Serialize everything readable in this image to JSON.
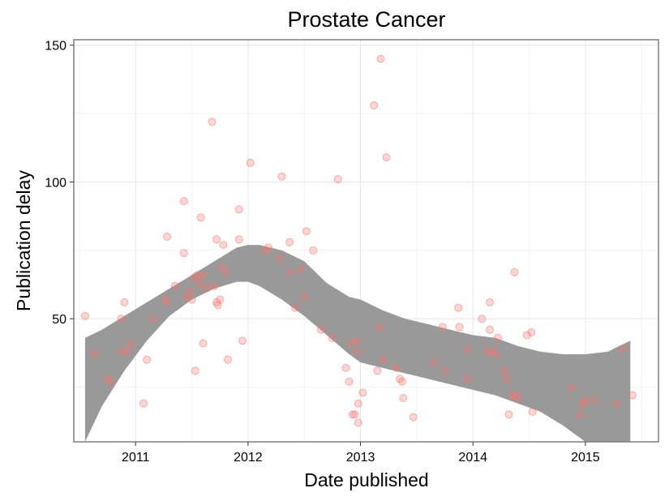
{
  "chart_data": {
    "type": "scatter",
    "title": "Prostate Cancer",
    "xlabel": "Date published",
    "ylabel": "Publication delay",
    "x_ticks": [
      "2011",
      "2012",
      "2013",
      "2014",
      "2015"
    ],
    "y_ticks": [
      "50",
      "100",
      "150"
    ],
    "xlim": [
      2010.45,
      2015.65
    ],
    "ylim": [
      5,
      152
    ],
    "grid": true,
    "point_color": "#F8766D",
    "smooth_fill_color": "#999999",
    "points": [
      [
        2010.55,
        51
      ],
      [
        2010.63,
        37
      ],
      [
        2010.75,
        28
      ],
      [
        2010.78,
        27
      ],
      [
        2010.87,
        50
      ],
      [
        2010.88,
        38
      ],
      [
        2010.9,
        56
      ],
      [
        2010.92,
        38
      ],
      [
        2010.95,
        41
      ],
      [
        2011.07,
        19
      ],
      [
        2011.1,
        35
      ],
      [
        2011.15,
        50
      ],
      [
        2011.27,
        57
      ],
      [
        2011.28,
        56
      ],
      [
        2011.28,
        80
      ],
      [
        2011.35,
        62
      ],
      [
        2011.43,
        93
      ],
      [
        2011.43,
        74
      ],
      [
        2011.45,
        58
      ],
      [
        2011.48,
        60
      ],
      [
        2011.5,
        57
      ],
      [
        2011.52,
        65
      ],
      [
        2011.53,
        31
      ],
      [
        2011.55,
        66
      ],
      [
        2011.57,
        63
      ],
      [
        2011.58,
        87
      ],
      [
        2011.6,
        66
      ],
      [
        2011.6,
        41
      ],
      [
        2011.63,
        61
      ],
      [
        2011.68,
        122
      ],
      [
        2011.7,
        62
      ],
      [
        2011.72,
        79
      ],
      [
        2011.72,
        56
      ],
      [
        2011.73,
        55
      ],
      [
        2011.75,
        57
      ],
      [
        2011.77,
        69
      ],
      [
        2011.78,
        77
      ],
      [
        2011.8,
        67
      ],
      [
        2011.82,
        35
      ],
      [
        2011.92,
        90
      ],
      [
        2011.92,
        79
      ],
      [
        2011.95,
        42
      ],
      [
        2012.02,
        107
      ],
      [
        2012.15,
        75
      ],
      [
        2012.18,
        76
      ],
      [
        2012.28,
        72
      ],
      [
        2012.3,
        102
      ],
      [
        2012.37,
        67
      ],
      [
        2012.37,
        78
      ],
      [
        2012.42,
        54
      ],
      [
        2012.47,
        68
      ],
      [
        2012.5,
        58
      ],
      [
        2012.52,
        82
      ],
      [
        2012.58,
        75
      ],
      [
        2012.65,
        46
      ],
      [
        2012.75,
        43
      ],
      [
        2012.8,
        101
      ],
      [
        2012.87,
        32
      ],
      [
        2012.9,
        27
      ],
      [
        2012.92,
        41
      ],
      [
        2012.93,
        15
      ],
      [
        2012.95,
        15
      ],
      [
        2012.97,
        42
      ],
      [
        2012.97,
        38
      ],
      [
        2012.98,
        19
      ],
      [
        2012.98,
        12
      ],
      [
        2013.02,
        23
      ],
      [
        2013.12,
        128
      ],
      [
        2013.15,
        31
      ],
      [
        2013.17,
        47
      ],
      [
        2013.18,
        145
      ],
      [
        2013.2,
        35
      ],
      [
        2013.23,
        109
      ],
      [
        2013.32,
        32
      ],
      [
        2013.35,
        28
      ],
      [
        2013.37,
        27
      ],
      [
        2013.38,
        21
      ],
      [
        2013.47,
        14
      ],
      [
        2013.65,
        34
      ],
      [
        2013.73,
        47
      ],
      [
        2013.75,
        31
      ],
      [
        2013.87,
        54
      ],
      [
        2013.88,
        47
      ],
      [
        2013.95,
        39
      ],
      [
        2013.95,
        28
      ],
      [
        2014.08,
        50
      ],
      [
        2014.13,
        38
      ],
      [
        2014.15,
        46
      ],
      [
        2014.15,
        56
      ],
      [
        2014.17,
        38
      ],
      [
        2014.2,
        37
      ],
      [
        2014.22,
        43
      ],
      [
        2014.28,
        31
      ],
      [
        2014.3,
        28
      ],
      [
        2014.32,
        15
      ],
      [
        2014.35,
        22
      ],
      [
        2014.37,
        67
      ],
      [
        2014.38,
        22
      ],
      [
        2014.4,
        21
      ],
      [
        2014.48,
        44
      ],
      [
        2014.52,
        45
      ],
      [
        2014.53,
        16
      ],
      [
        2014.88,
        25
      ],
      [
        2014.95,
        15
      ],
      [
        2014.97,
        19
      ],
      [
        2015.0,
        20
      ],
      [
        2015.08,
        20
      ],
      [
        2015.28,
        19
      ],
      [
        2015.33,
        39
      ],
      [
        2015.42,
        22
      ]
    ],
    "smooth_band": {
      "x": [
        2010.55,
        2010.7,
        2010.9,
        2011.1,
        2011.3,
        2011.5,
        2011.7,
        2011.9,
        2012.0,
        2012.1,
        2012.3,
        2012.5,
        2012.7,
        2012.9,
        2013.0,
        2013.2,
        2013.4,
        2013.6,
        2013.8,
        2014.0,
        2014.2,
        2014.4,
        2014.6,
        2014.8,
        2015.0,
        2015.2,
        2015.4
      ],
      "upper": [
        43,
        46,
        51,
        56,
        61,
        66,
        71,
        76,
        77,
        77,
        75,
        71,
        63,
        58,
        57,
        53,
        50,
        48,
        46,
        44,
        43,
        40,
        38,
        37,
        37,
        38,
        42
      ],
      "lower": [
        5,
        18,
        31,
        42,
        51,
        57,
        61,
        63.5,
        63.5,
        62,
        57,
        51,
        44,
        37,
        34,
        32,
        30,
        28,
        26,
        24,
        22,
        19,
        16,
        11,
        5,
        -5,
        -15
      ]
    }
  }
}
